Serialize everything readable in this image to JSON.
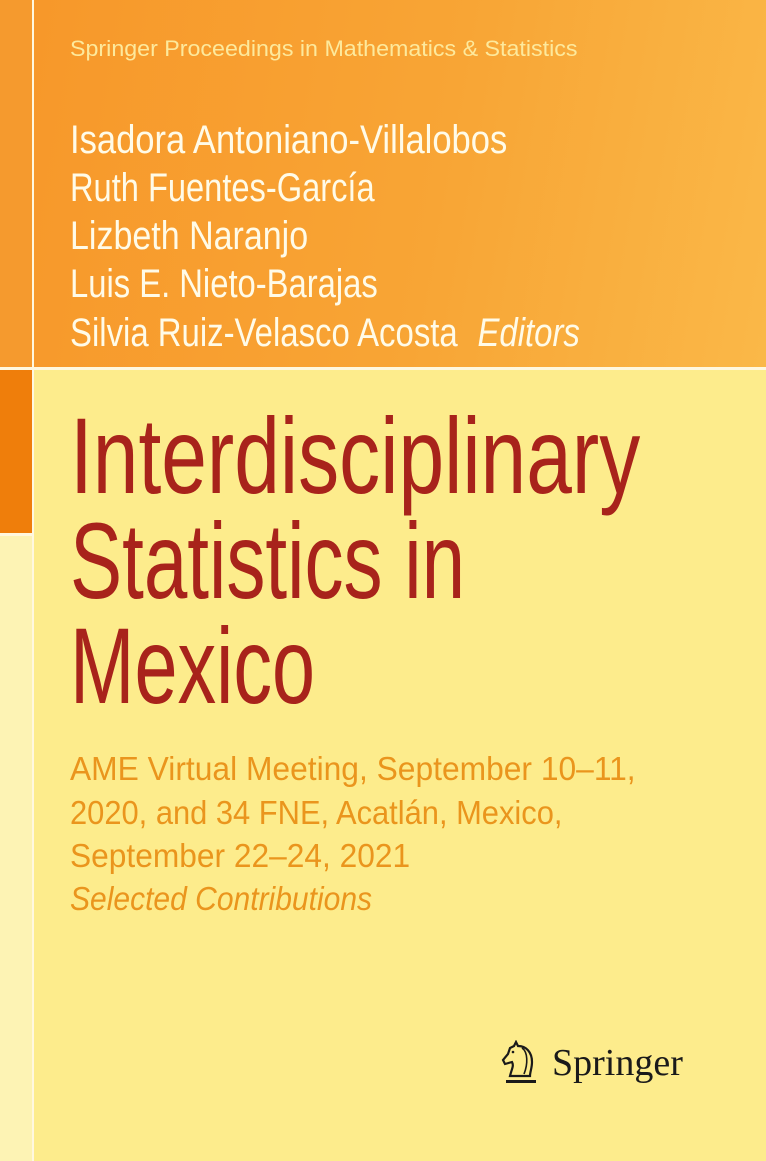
{
  "series": "Springer Proceedings in Mathematics & Statistics",
  "editors": [
    "Isadora Antoniano-Villalobos",
    "Ruth Fuentes-García",
    "Lizbeth Naranjo",
    "Luis E. Nieto-Barajas",
    "Silvia Ruiz-Velasco Acosta"
  ],
  "editors_label": "Editors",
  "title": [
    "Interdisciplinary",
    "Statistics in",
    "Mexico"
  ],
  "subtitle": [
    "AME Virtual Meeting, September 10–11,",
    "2020, and 34 FNE, Acatlán, Mexico,",
    "September 22–24, 2021"
  ],
  "subtitle_italic": "Selected Contributions",
  "publisher": {
    "name": "Springer",
    "icon": "knight-horse-icon"
  },
  "colors": {
    "title": "#a8231b",
    "subtitle": "#ea951d",
    "background": "#fdec8c",
    "top_band": "#f8a535"
  }
}
